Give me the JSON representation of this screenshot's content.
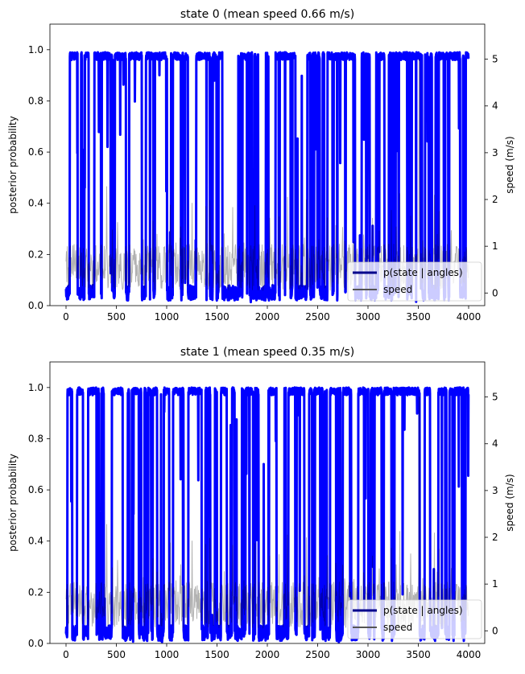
{
  "chart_data": [
    {
      "type": "line",
      "title": "state 0 (mean speed 0.66 m/s)",
      "ylabel": "posterior probability",
      "y2label": "speed (m/s)",
      "xlim": [
        -160,
        4160
      ],
      "ylim": [
        0,
        1.1
      ],
      "y2lim": [
        -0.27,
        5.75
      ],
      "xticks": [
        "0",
        "500",
        "1000",
        "1500",
        "2000",
        "2500",
        "3000",
        "3500",
        "4000"
      ],
      "yticks": [
        "0.0",
        "0.2",
        "0.4",
        "0.6",
        "0.8",
        "1.0"
      ],
      "y2ticks": [
        "0",
        "1",
        "2",
        "3",
        "4",
        "5"
      ],
      "legend_position": "lower-right",
      "series": [
        {
          "name": "p(state | angles)",
          "color": "#0000ff",
          "n": 4000,
          "p_high": 0.66,
          "low": 0.02,
          "high": 0.99
        },
        {
          "name": "speed",
          "color": "#000000",
          "mean": 0.66,
          "max": 5.0,
          "max_at": 3510
        }
      ]
    },
    {
      "type": "line",
      "title": "state 1 (mean speed 0.35 m/s)",
      "ylabel": "posterior probability",
      "y2label": "speed (m/s)",
      "xlim": [
        -160,
        4160
      ],
      "ylim": [
        0,
        1.1
      ],
      "y2lim": [
        -0.27,
        5.75
      ],
      "xticks": [
        "0",
        "500",
        "1000",
        "1500",
        "2000",
        "2500",
        "3000",
        "3500",
        "4000"
      ],
      "yticks": [
        "0.0",
        "0.2",
        "0.4",
        "0.6",
        "0.8",
        "1.0"
      ],
      "y2ticks": [
        "0",
        "1",
        "2",
        "3",
        "4",
        "5"
      ],
      "legend_position": "lower-right",
      "series": [
        {
          "name": "p(state | angles)",
          "color": "#0000ff",
          "n": 4000,
          "p_high": 0.55,
          "low": 0.01,
          "high": 1.0
        },
        {
          "name": "speed",
          "color": "#000000",
          "mean": 0.35,
          "max": 5.0,
          "max_at": 3510
        }
      ]
    }
  ]
}
